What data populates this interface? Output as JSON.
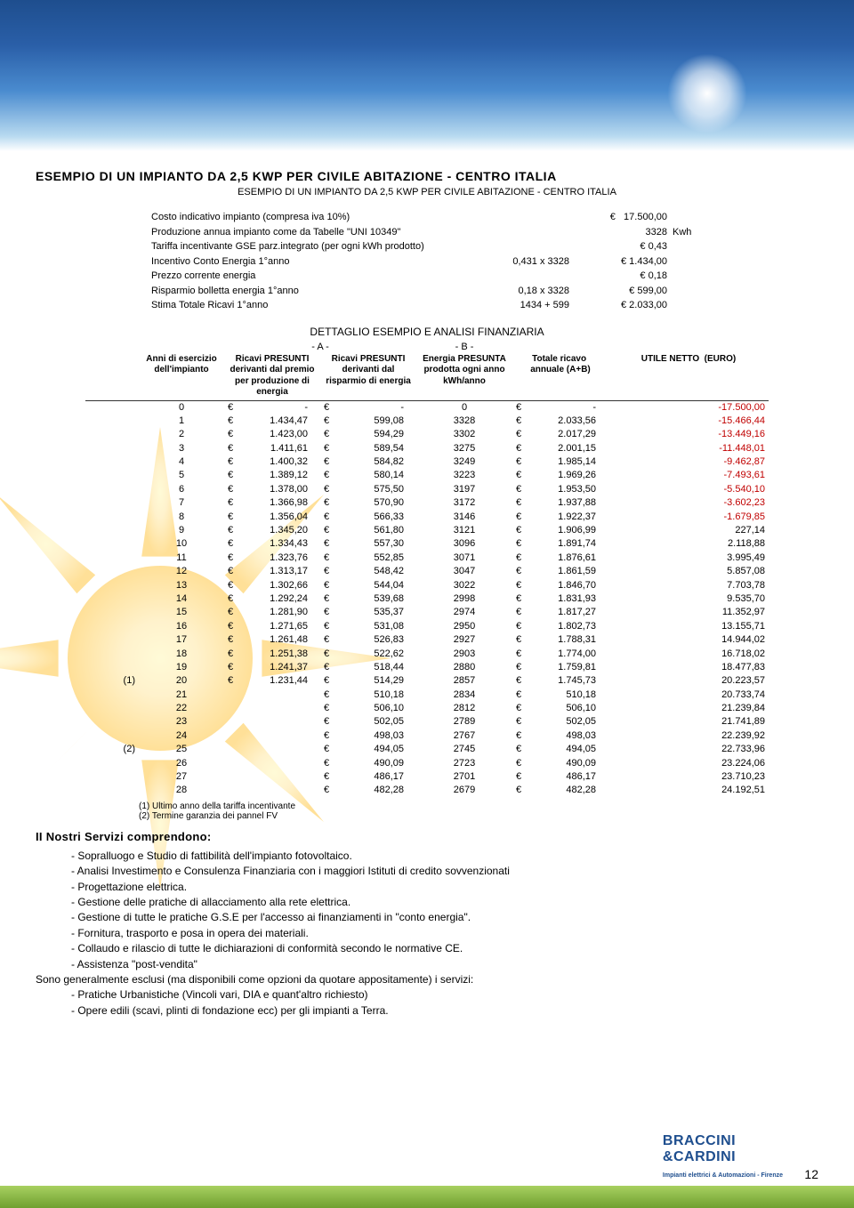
{
  "main_title": "ESEMPIO DI UN IMPIANTO DA 2,5 KWP PER CIVILE ABITAZIONE - CENTRO ITALIA",
  "subtitle": "ESEMPIO DI UN IMPIANTO DA 2,5 KWP PER CIVILE ABITAZIONE - CENTRO ITALIA",
  "info": [
    {
      "label": "Costo indicativo impianto (compresa iva 10%)",
      "mid": "",
      "sym": "€",
      "val": "17.500,00",
      "unit": ""
    },
    {
      "label": "Produzione annua impianto come da Tabelle \"UNI 10349\"",
      "mid": "",
      "sym": "",
      "val": "3328",
      "unit": "Kwh"
    },
    {
      "label": "Tariffa incentivante GSE parz.integrato (per ogni kWh prodotto)",
      "mid": "",
      "sym": "",
      "val": "€ 0,43",
      "unit": ""
    },
    {
      "label": "Incentivo Conto Energia 1°anno",
      "mid": "0,431 x 3328",
      "sym": "",
      "val": "€ 1.434,00",
      "unit": ""
    },
    {
      "label": "Prezzo corrente energia",
      "mid": "",
      "sym": "",
      "val": "€ 0,18",
      "unit": ""
    },
    {
      "label": "Risparmio bolletta energia 1°anno",
      "mid": "0,18 x 3328",
      "sym": "",
      "val": "€ 599,00",
      "unit": ""
    },
    {
      "label": "Stima Totale Ricavi 1°anno",
      "mid": "1434 + 599",
      "sym": "",
      "val": "€ 2.033,00",
      "unit": ""
    }
  ],
  "detail_title": "DETTAGLIO ESEMPIO E ANALISI FINANZIARIA",
  "ab": {
    "a": "- A -",
    "b": "- B -"
  },
  "headers": {
    "anni": "Anni di esercizio dell'impianto",
    "ricA": "Ricavi PRESUNTI derivanti dal premio per produzione di energia",
    "ricB": "Ricavi PRESUNTI derivanti dal risparmio di energia",
    "ener": "Energia PRESUNTA prodotta ogni anno kWh/anno",
    "tot": "Totale ricavo  annuale (A+B)",
    "util": "UTILE NETTO  (EURO)"
  },
  "rows": [
    {
      "side": "",
      "anno": "0",
      "a": {
        "sym": "€",
        "v": "-"
      },
      "b": {
        "sym": "€",
        "v": "-"
      },
      "e": "0",
      "t": {
        "sym": "€",
        "v": "-"
      },
      "u": "-17.500,00",
      "neg": true
    },
    {
      "side": "",
      "anno": "1",
      "a": {
        "sym": "€",
        "v": "1.434,47"
      },
      "b": {
        "sym": "€",
        "v": "599,08"
      },
      "e": "3328",
      "t": {
        "sym": "€",
        "v": "2.033,56"
      },
      "u": "-15.466,44",
      "neg": true
    },
    {
      "side": "",
      "anno": "2",
      "a": {
        "sym": "€",
        "v": "1.423,00"
      },
      "b": {
        "sym": "€",
        "v": "594,29"
      },
      "e": "3302",
      "t": {
        "sym": "€",
        "v": "2.017,29"
      },
      "u": "-13.449,16",
      "neg": true
    },
    {
      "side": "",
      "anno": "3",
      "a": {
        "sym": "€",
        "v": "1.411,61"
      },
      "b": {
        "sym": "€",
        "v": "589,54"
      },
      "e": "3275",
      "t": {
        "sym": "€",
        "v": "2.001,15"
      },
      "u": "-11.448,01",
      "neg": true
    },
    {
      "side": "",
      "anno": "4",
      "a": {
        "sym": "€",
        "v": "1.400,32"
      },
      "b": {
        "sym": "€",
        "v": "584,82"
      },
      "e": "3249",
      "t": {
        "sym": "€",
        "v": "1.985,14"
      },
      "u": "-9.462,87",
      "neg": true
    },
    {
      "side": "",
      "anno": "5",
      "a": {
        "sym": "€",
        "v": "1.389,12"
      },
      "b": {
        "sym": "€",
        "v": "580,14"
      },
      "e": "3223",
      "t": {
        "sym": "€",
        "v": "1.969,26"
      },
      "u": "-7.493,61",
      "neg": true
    },
    {
      "side": "",
      "anno": "6",
      "a": {
        "sym": "€",
        "v": "1.378,00"
      },
      "b": {
        "sym": "€",
        "v": "575,50"
      },
      "e": "3197",
      "t": {
        "sym": "€",
        "v": "1.953,50"
      },
      "u": "-5.540,10",
      "neg": true
    },
    {
      "side": "",
      "anno": "7",
      "a": {
        "sym": "€",
        "v": "1.366,98"
      },
      "b": {
        "sym": "€",
        "v": "570,90"
      },
      "e": "3172",
      "t": {
        "sym": "€",
        "v": "1.937,88"
      },
      "u": "-3.602,23",
      "neg": true
    },
    {
      "side": "",
      "anno": "8",
      "a": {
        "sym": "€",
        "v": "1.356,04"
      },
      "b": {
        "sym": "€",
        "v": "566,33"
      },
      "e": "3146",
      "t": {
        "sym": "€",
        "v": "1.922,37"
      },
      "u": "-1.679,85",
      "neg": true
    },
    {
      "side": "",
      "anno": "9",
      "a": {
        "sym": "€",
        "v": "1.345,20"
      },
      "b": {
        "sym": "€",
        "v": "561,80"
      },
      "e": "3121",
      "t": {
        "sym": "€",
        "v": "1.906,99"
      },
      "u": "227,14",
      "neg": false
    },
    {
      "side": "",
      "anno": "10",
      "a": {
        "sym": "€",
        "v": "1.334,43"
      },
      "b": {
        "sym": "€",
        "v": "557,30"
      },
      "e": "3096",
      "t": {
        "sym": "€",
        "v": "1.891,74"
      },
      "u": "2.118,88",
      "neg": false
    },
    {
      "side": "",
      "anno": "11",
      "a": {
        "sym": "€",
        "v": "1.323,76"
      },
      "b": {
        "sym": "€",
        "v": "552,85"
      },
      "e": "3071",
      "t": {
        "sym": "€",
        "v": "1.876,61"
      },
      "u": "3.995,49",
      "neg": false
    },
    {
      "side": "",
      "anno": "12",
      "a": {
        "sym": "€",
        "v": "1.313,17"
      },
      "b": {
        "sym": "€",
        "v": "548,42"
      },
      "e": "3047",
      "t": {
        "sym": "€",
        "v": "1.861,59"
      },
      "u": "5.857,08",
      "neg": false
    },
    {
      "side": "",
      "anno": "13",
      "a": {
        "sym": "€",
        "v": "1.302,66"
      },
      "b": {
        "sym": "€",
        "v": "544,04"
      },
      "e": "3022",
      "t": {
        "sym": "€",
        "v": "1.846,70"
      },
      "u": "7.703,78",
      "neg": false
    },
    {
      "side": "",
      "anno": "14",
      "a": {
        "sym": "€",
        "v": "1.292,24"
      },
      "b": {
        "sym": "€",
        "v": "539,68"
      },
      "e": "2998",
      "t": {
        "sym": "€",
        "v": "1.831,93"
      },
      "u": "9.535,70",
      "neg": false
    },
    {
      "side": "",
      "anno": "15",
      "a": {
        "sym": "€",
        "v": "1.281,90"
      },
      "b": {
        "sym": "€",
        "v": "535,37"
      },
      "e": "2974",
      "t": {
        "sym": "€",
        "v": "1.817,27"
      },
      "u": "11.352,97",
      "neg": false
    },
    {
      "side": "",
      "anno": "16",
      "a": {
        "sym": "€",
        "v": "1.271,65"
      },
      "b": {
        "sym": "€",
        "v": "531,08"
      },
      "e": "2950",
      "t": {
        "sym": "€",
        "v": "1.802,73"
      },
      "u": "13.155,71",
      "neg": false
    },
    {
      "side": "",
      "anno": "17",
      "a": {
        "sym": "€",
        "v": "1.261,48"
      },
      "b": {
        "sym": "€",
        "v": "526,83"
      },
      "e": "2927",
      "t": {
        "sym": "€",
        "v": "1.788,31"
      },
      "u": "14.944,02",
      "neg": false
    },
    {
      "side": "",
      "anno": "18",
      "a": {
        "sym": "€",
        "v": "1.251,38"
      },
      "b": {
        "sym": "€",
        "v": "522,62"
      },
      "e": "2903",
      "t": {
        "sym": "€",
        "v": "1.774,00"
      },
      "u": "16.718,02",
      "neg": false
    },
    {
      "side": "",
      "anno": "19",
      "a": {
        "sym": "€",
        "v": "1.241,37"
      },
      "b": {
        "sym": "€",
        "v": "518,44"
      },
      "e": "2880",
      "t": {
        "sym": "€",
        "v": "1.759,81"
      },
      "u": "18.477,83",
      "neg": false
    },
    {
      "side": "(1)",
      "anno": "20",
      "a": {
        "sym": "€",
        "v": "1.231,44"
      },
      "b": {
        "sym": "€",
        "v": "514,29"
      },
      "e": "2857",
      "t": {
        "sym": "€",
        "v": "1.745,73"
      },
      "u": "20.223,57",
      "neg": false
    },
    {
      "side": "",
      "anno": "21",
      "a": {
        "sym": "",
        "v": ""
      },
      "b": {
        "sym": "€",
        "v": "510,18"
      },
      "e": "2834",
      "t": {
        "sym": "€",
        "v": "510,18"
      },
      "u": "20.733,74",
      "neg": false
    },
    {
      "side": "",
      "anno": "22",
      "a": {
        "sym": "",
        "v": ""
      },
      "b": {
        "sym": "€",
        "v": "506,10"
      },
      "e": "2812",
      "t": {
        "sym": "€",
        "v": "506,10"
      },
      "u": "21.239,84",
      "neg": false
    },
    {
      "side": "",
      "anno": "23",
      "a": {
        "sym": "",
        "v": ""
      },
      "b": {
        "sym": "€",
        "v": "502,05"
      },
      "e": "2789",
      "t": {
        "sym": "€",
        "v": "502,05"
      },
      "u": "21.741,89",
      "neg": false
    },
    {
      "side": "",
      "anno": "24",
      "a": {
        "sym": "",
        "v": ""
      },
      "b": {
        "sym": "€",
        "v": "498,03"
      },
      "e": "2767",
      "t": {
        "sym": "€",
        "v": "498,03"
      },
      "u": "22.239,92",
      "neg": false
    },
    {
      "side": "(2)",
      "anno": "25",
      "a": {
        "sym": "",
        "v": ""
      },
      "b": {
        "sym": "€",
        "v": "494,05"
      },
      "e": "2745",
      "t": {
        "sym": "€",
        "v": "494,05"
      },
      "u": "22.733,96",
      "neg": false
    },
    {
      "side": "",
      "anno": "26",
      "a": {
        "sym": "",
        "v": ""
      },
      "b": {
        "sym": "€",
        "v": "490,09"
      },
      "e": "2723",
      "t": {
        "sym": "€",
        "v": "490,09"
      },
      "u": "23.224,06",
      "neg": false
    },
    {
      "side": "",
      "anno": "27",
      "a": {
        "sym": "",
        "v": ""
      },
      "b": {
        "sym": "€",
        "v": "486,17"
      },
      "e": "2701",
      "t": {
        "sym": "€",
        "v": "486,17"
      },
      "u": "23.710,23",
      "neg": false
    },
    {
      "side": "",
      "anno": "28",
      "a": {
        "sym": "",
        "v": ""
      },
      "b": {
        "sym": "€",
        "v": "482,28"
      },
      "e": "2679",
      "t": {
        "sym": "€",
        "v": "482,28"
      },
      "u": "24.192,51",
      "neg": false
    }
  ],
  "foot1": "(1)  Ultimo anno della tariffa incentivante",
  "foot2": "(2)  Termine garanzia dei pannel FV",
  "services_title": "II Nostri Servizi comprendono:",
  "services": [
    "- Sopralluogo e Studio di fattibilità dell'impianto fotovoltaico.",
    "- Analisi Investimento e Consulenza Finanziaria con i maggiori Istituti di credito sovvenzionati",
    "- Progettazione elettrica.",
    "- Gestione delle pratiche di allacciamento alla rete elettrica.",
    "- Gestione di tutte le pratiche G.S.E per l'accesso ai finanziamenti in \"conto energia\".",
    "- Fornitura, trasporto e posa in opera dei materiali.",
    "- Collaudo e rilascio di tutte le dichiarazioni di conformità secondo le normative CE.",
    "- Assistenza \"post-vendita\""
  ],
  "excluded_intro": "Sono generalmente esclusi (ma disponibili come opzioni da quotare appositamente) i servizi:",
  "excluded": [
    "- Pratiche Urbanistiche (Vincoli vari, DIA e quant'altro richiesto)",
    "- Opere edili (scavi, plinti di fondazione ecc) per gli impianti a Terra."
  ],
  "logo": "BRACCINI",
  "logo2": "&CARDINI",
  "logo_sub": "Impianti elettrici & Automazioni - Firenze",
  "page_number": "12"
}
